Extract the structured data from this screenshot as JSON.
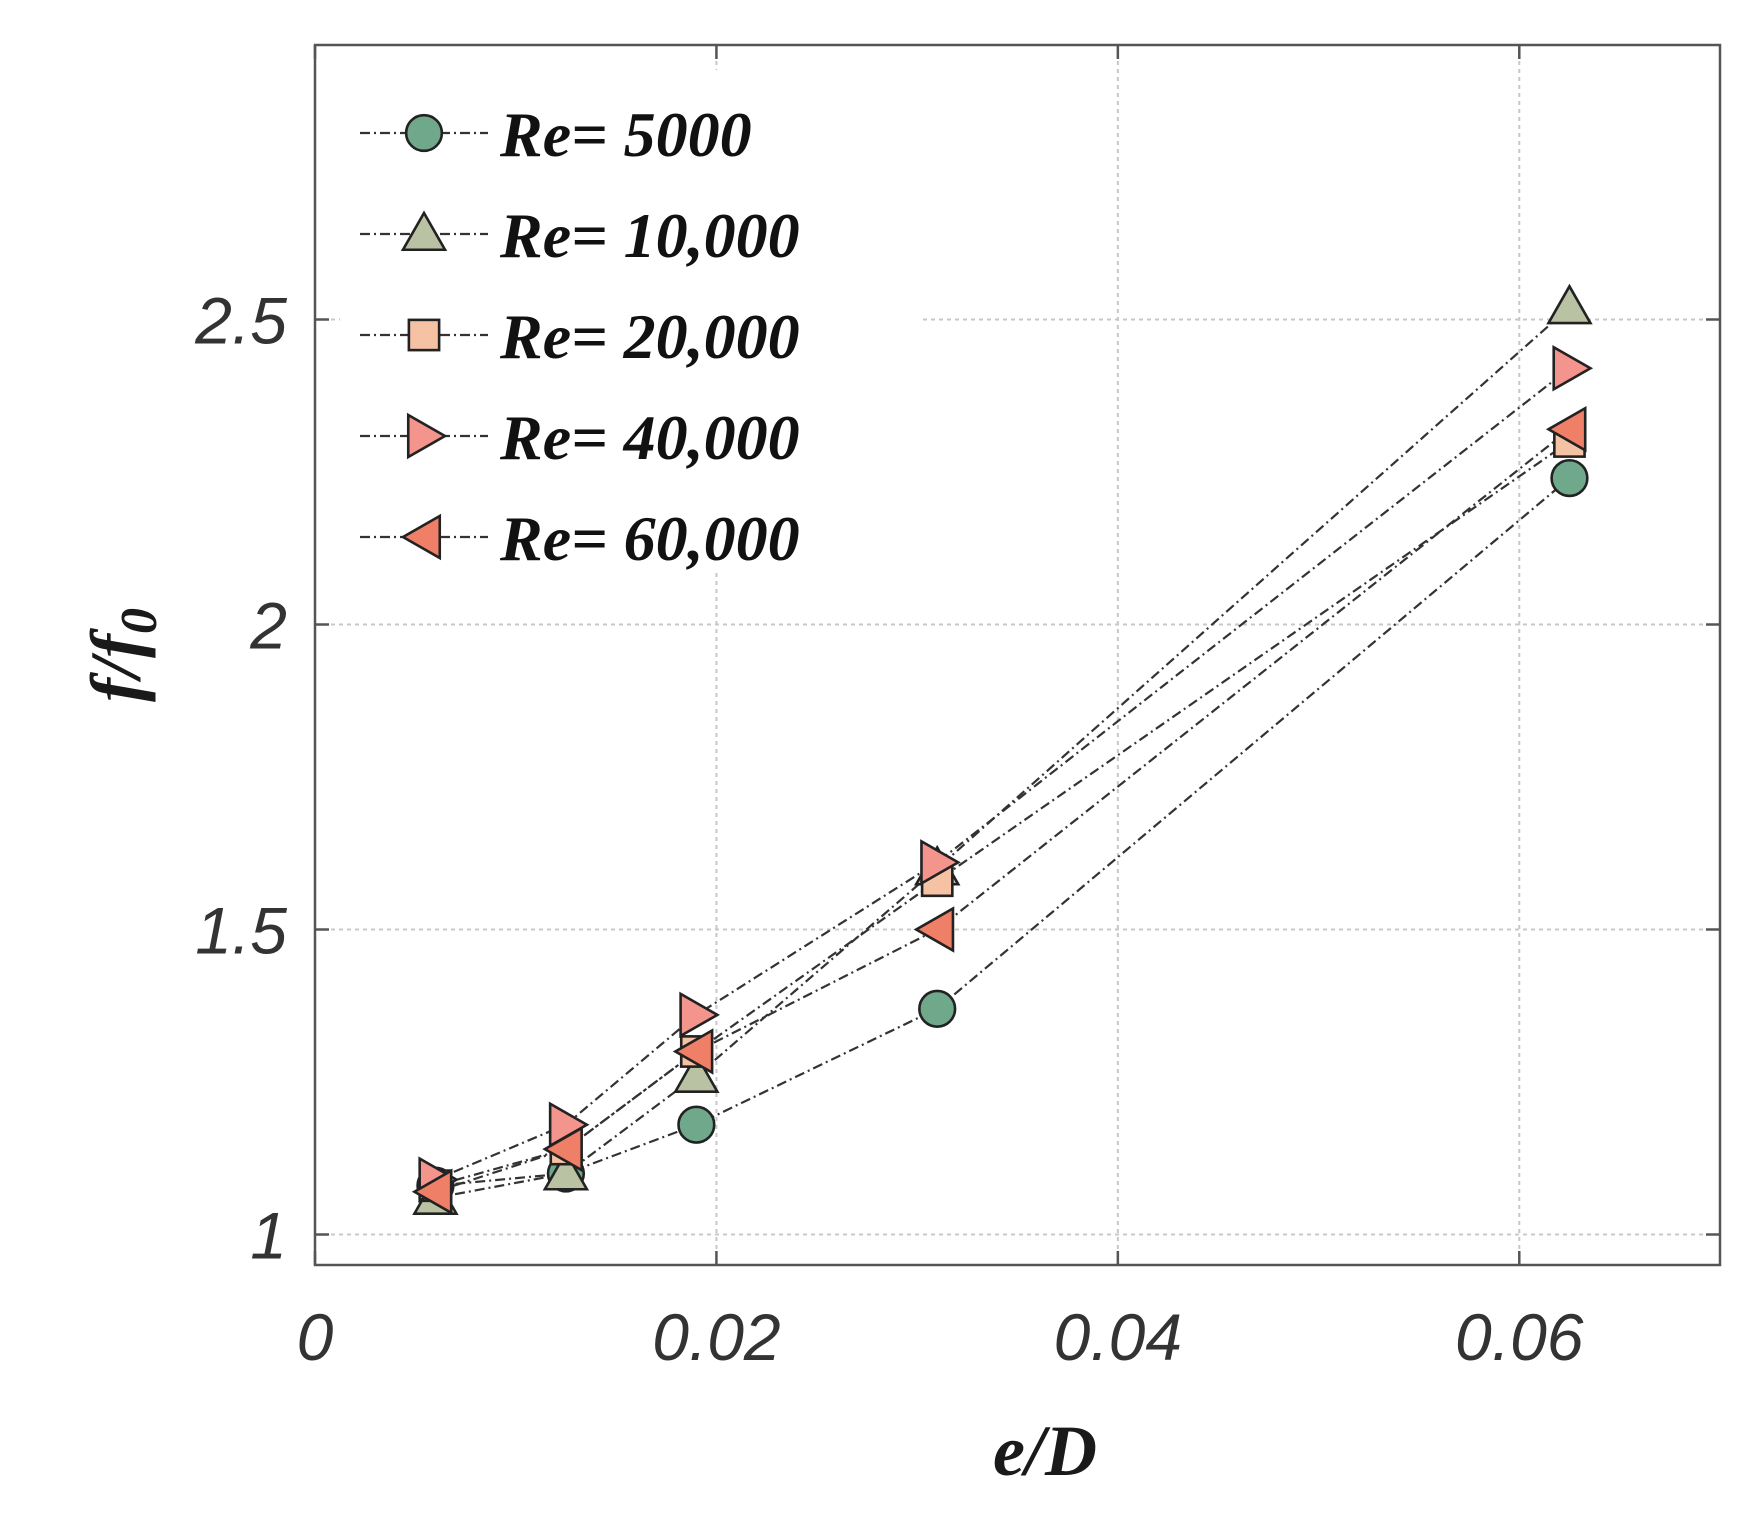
{
  "chart_data": {
    "type": "line",
    "title": "",
    "xlabel": "e/D",
    "ylabel_main": "f/f",
    "ylabel_sub": "0",
    "xlim": [
      0,
      0.07
    ],
    "ylim": [
      0.95,
      2.95
    ],
    "xticks": [
      0,
      0.02,
      0.04,
      0.06
    ],
    "xtick_labels": [
      "0",
      "0.02",
      "0.04",
      "0.06"
    ],
    "yticks": [
      1,
      1.5,
      2,
      2.5
    ],
    "ytick_labels": [
      "1",
      "1.5",
      "2",
      "2.5"
    ],
    "grid": true,
    "legend_position": "top-left",
    "x": [
      0.006,
      0.0125,
      0.019,
      0.031,
      0.0625
    ],
    "series": [
      {
        "name": "Re= 5000",
        "marker": "circle",
        "color": "#6fa88a",
        "values": [
          1.08,
          1.1,
          1.18,
          1.37,
          2.24
        ]
      },
      {
        "name": "Re= 10,000",
        "marker": "triangle-up",
        "color": "#b9c2a2",
        "values": [
          1.06,
          1.1,
          1.26,
          1.6,
          2.52
        ]
      },
      {
        "name": "Re= 20,000",
        "marker": "square",
        "color": "#f5c2a4",
        "values": [
          1.08,
          1.14,
          1.3,
          1.58,
          2.3
        ]
      },
      {
        "name": "Re= 40,000",
        "marker": "triangle-right",
        "color": "#f4958d",
        "values": [
          1.09,
          1.18,
          1.36,
          1.61,
          2.42
        ]
      },
      {
        "name": "Re= 60,000",
        "marker": "triangle-left",
        "color": "#f07f67",
        "values": [
          1.07,
          1.14,
          1.3,
          1.5,
          2.32
        ]
      }
    ]
  }
}
